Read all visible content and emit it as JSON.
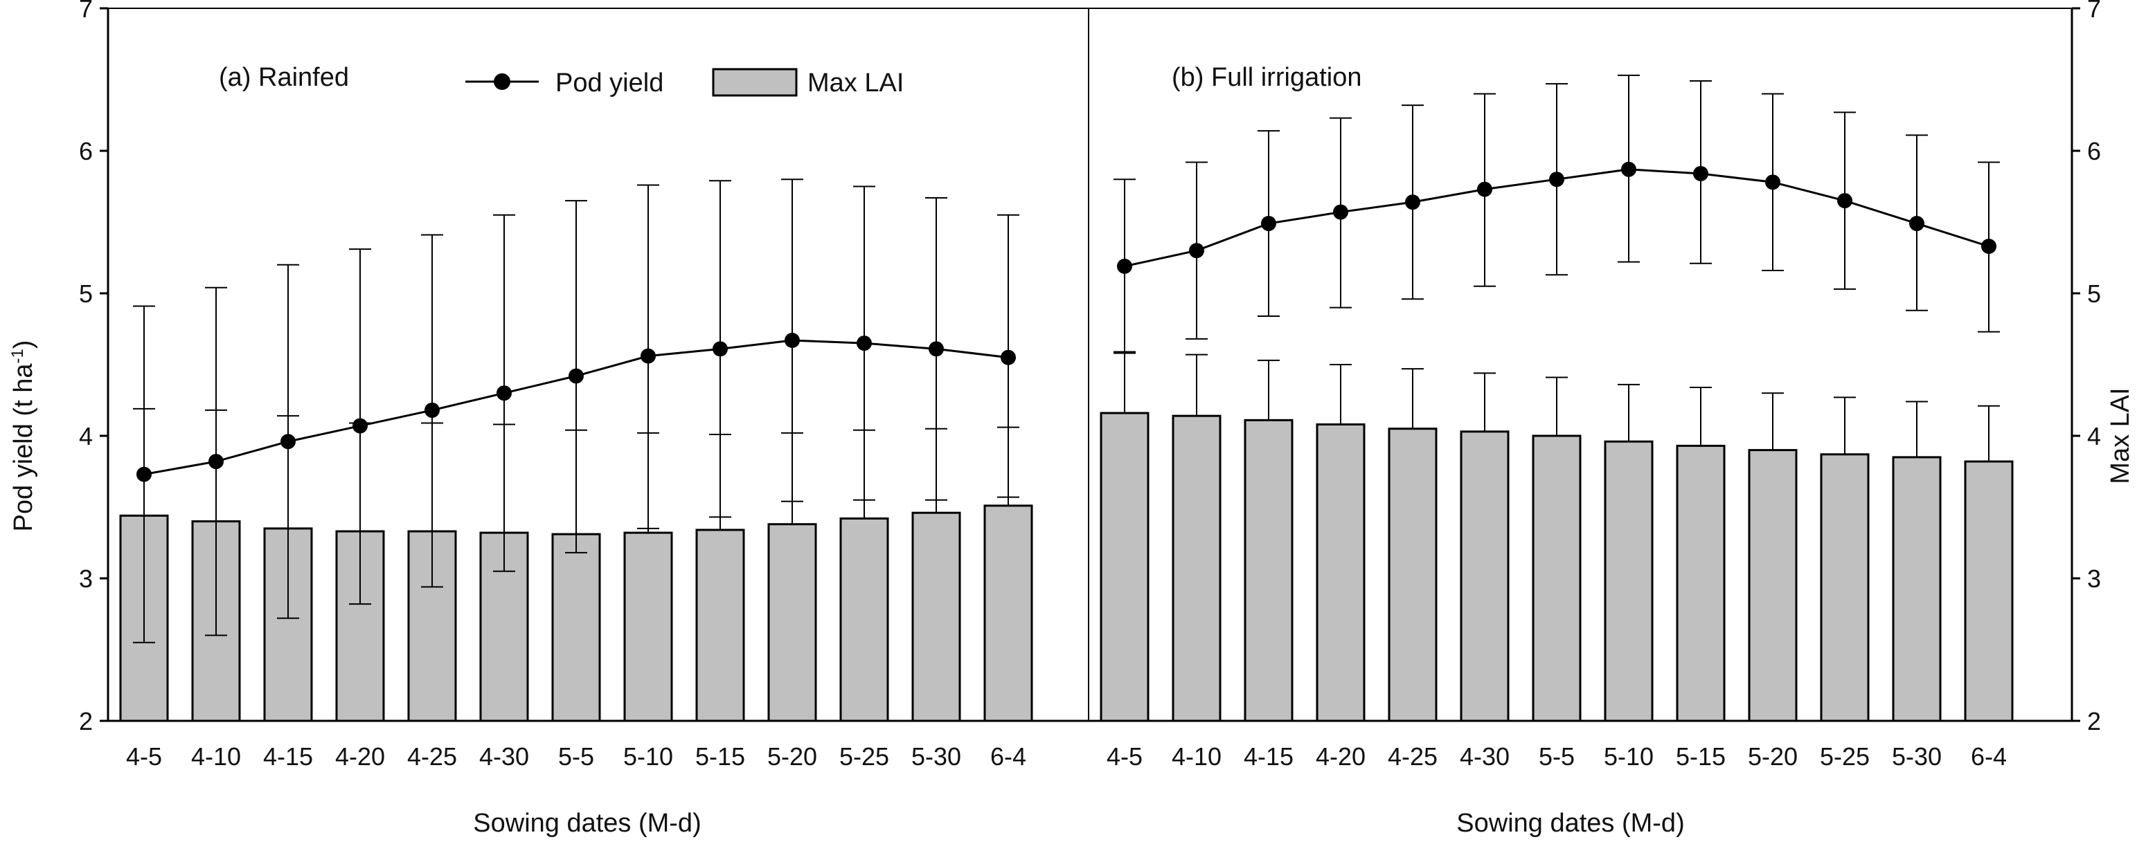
{
  "chart_data": {
    "type": "bar+line",
    "categories": [
      "4-5",
      "4-10",
      "4-15",
      "4-20",
      "4-25",
      "4-30",
      "5-5",
      "5-10",
      "5-15",
      "5-20",
      "5-25",
      "5-30",
      "6-4"
    ],
    "y_left": {
      "label_main": "Pod yield (t ha",
      "label_sup": "-1",
      "label_end": ")",
      "range": [
        2,
        7
      ],
      "ticks": [
        "2",
        "3",
        "4",
        "5",
        "6",
        "7"
      ]
    },
    "y_right": {
      "label": "Max LAI",
      "range": [
        2,
        7
      ],
      "ticks": [
        "2",
        "3",
        "4",
        "5",
        "6",
        "7"
      ]
    },
    "legend": {
      "line_label": "Pod yield",
      "bar_label": "Max LAI",
      "placement": "top-left"
    },
    "colors": {
      "bar_fill": "#c0c0c0",
      "stroke": "#000000"
    },
    "panels": [
      {
        "title": "(a) Rainfed",
        "xlabel": "Sowing dates (M-d)",
        "pod_yield": [
          3.73,
          3.82,
          3.96,
          4.07,
          4.18,
          4.3,
          4.42,
          4.56,
          4.61,
          4.67,
          4.65,
          4.61,
          4.55
        ],
        "pod_yield_upper": [
          4.91,
          5.04,
          5.2,
          5.31,
          5.41,
          5.55,
          5.65,
          5.76,
          5.79,
          5.8,
          5.75,
          5.67,
          5.55
        ],
        "pod_yield_lower": [
          2.55,
          2.6,
          2.72,
          2.82,
          2.94,
          3.05,
          3.18,
          3.35,
          3.43,
          3.54,
          3.55,
          3.55,
          3.57
        ],
        "max_lai": [
          3.44,
          3.4,
          3.35,
          3.33,
          3.33,
          3.32,
          3.31,
          3.32,
          3.34,
          3.38,
          3.42,
          3.46,
          3.51
        ],
        "max_lai_upper": [
          4.19,
          4.18,
          4.14,
          4.09,
          4.09,
          4.08,
          4.04,
          4.02,
          4.01,
          4.02,
          4.04,
          4.05,
          4.06
        ]
      },
      {
        "title": "(b) Full irrigation",
        "xlabel": "Sowing dates (M-d)",
        "pod_yield": [
          5.19,
          5.3,
          5.49,
          5.57,
          5.64,
          5.73,
          5.8,
          5.87,
          5.84,
          5.78,
          5.65,
          5.49,
          5.33
        ],
        "pod_yield_upper": [
          5.8,
          5.92,
          6.14,
          6.23,
          6.32,
          6.4,
          6.47,
          6.53,
          6.49,
          6.4,
          6.27,
          6.11,
          5.92
        ],
        "pod_yield_lower": [
          4.58,
          4.68,
          4.84,
          4.9,
          4.96,
          5.05,
          5.13,
          5.22,
          5.21,
          5.16,
          5.03,
          4.88,
          4.73
        ],
        "max_lai": [
          4.16,
          4.14,
          4.11,
          4.08,
          4.05,
          4.03,
          4.0,
          3.96,
          3.93,
          3.9,
          3.87,
          3.85,
          3.82
        ],
        "max_lai_upper": [
          4.59,
          4.57,
          4.53,
          4.5,
          4.47,
          4.44,
          4.41,
          4.36,
          4.34,
          4.3,
          4.27,
          4.24,
          4.21
        ]
      }
    ]
  }
}
